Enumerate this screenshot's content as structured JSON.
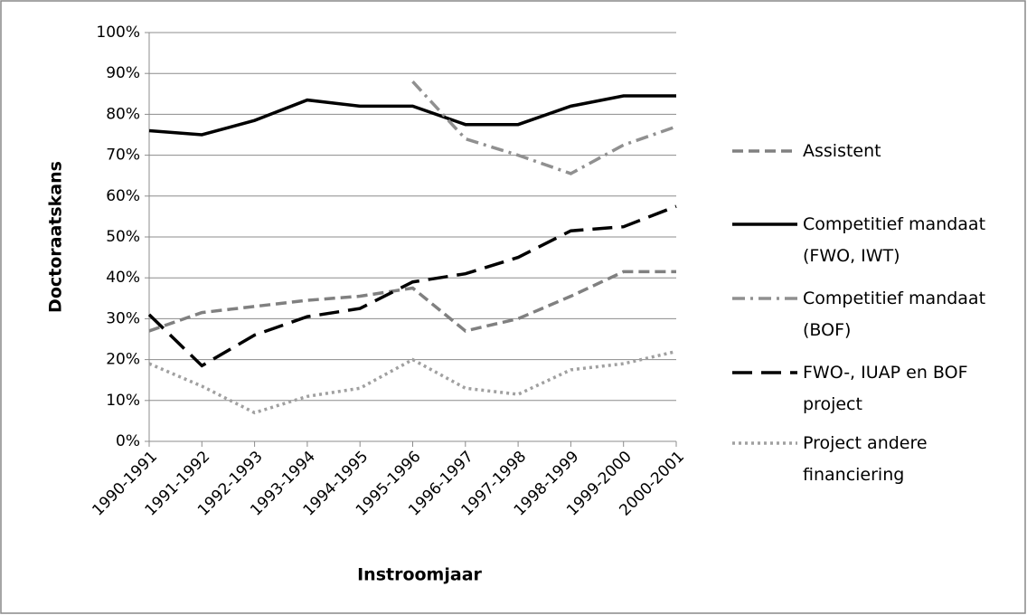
{
  "chart_data": {
    "type": "line",
    "x_label": "Instroomjaar",
    "y_label": "Doctoraatskans",
    "categories": [
      "1990-1991",
      "1991-1992",
      "1992-1993",
      "1993-1994",
      "1994-1995",
      "1995-1996",
      "1996-1997",
      "1997-1998",
      "1998-1999",
      "1999-2000",
      "2000-2001"
    ],
    "ylim": [
      0,
      100
    ],
    "yticks": [
      {
        "value": 0,
        "label": "0%"
      },
      {
        "value": 10,
        "label": "10%"
      },
      {
        "value": 20,
        "label": "20%"
      },
      {
        "value": 30,
        "label": "30%"
      },
      {
        "value": 40,
        "label": "40%"
      },
      {
        "value": 50,
        "label": "50%"
      },
      {
        "value": 60,
        "label": "60%"
      },
      {
        "value": 70,
        "label": "70%"
      },
      {
        "value": 80,
        "label": "80%"
      },
      {
        "value": 90,
        "label": "90%"
      },
      {
        "value": 100,
        "label": "100%"
      }
    ],
    "grid": true,
    "legend": "right",
    "series": [
      {
        "name": "Assistent",
        "color": "#808080",
        "dash": "dashed",
        "values": [
          27,
          31.5,
          33,
          34.5,
          35.5,
          37.5,
          27,
          30,
          35.5,
          41.5,
          41.5
        ]
      },
      {
        "name": "Competitief mandaat (FWO, IWT)",
        "color": "#000000",
        "dash": "solid",
        "values": [
          76,
          75,
          78.5,
          83.5,
          82,
          82,
          77.5,
          77.5,
          82,
          84.5,
          84.5
        ]
      },
      {
        "name": "Competitief mandaat (BOF)",
        "color": "#909090",
        "dash": "dash-dot",
        "values": [
          null,
          null,
          null,
          null,
          null,
          88,
          74,
          70,
          65.5,
          72.5,
          77
        ]
      },
      {
        "name": "FWO-, IUAP en BOF project",
        "color": "#000000",
        "dash": "long-dash",
        "values": [
          31,
          18.5,
          26,
          30.5,
          32.5,
          39,
          41,
          45,
          51.5,
          52.5,
          57.5
        ]
      },
      {
        "name": "Project andere financiering",
        "color": "#a0a0a0",
        "dash": "dotted",
        "values": [
          19,
          13.5,
          7,
          11,
          13,
          20,
          13,
          11.5,
          17.5,
          19,
          22
        ]
      }
    ]
  }
}
